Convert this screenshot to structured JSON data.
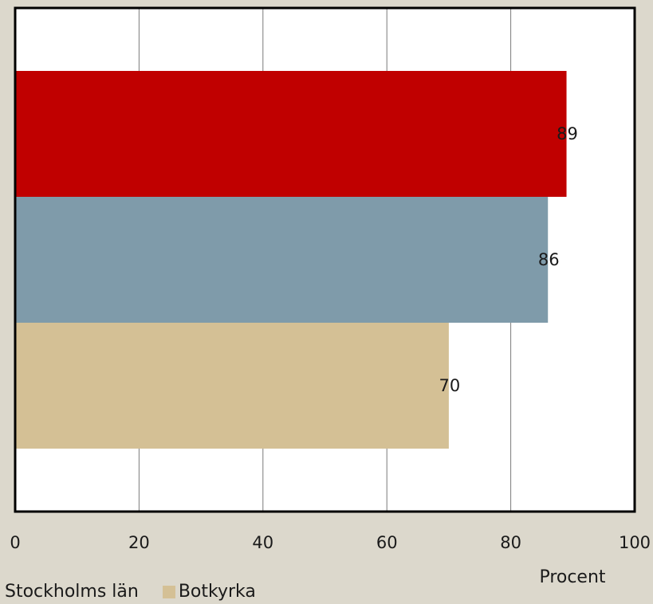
{
  "chart_data": {
    "type": "bar",
    "orientation": "horizontal",
    "xlabel": "Procent",
    "xlim": [
      0,
      100
    ],
    "xticks": [
      "0",
      "20",
      "40",
      "60",
      "80",
      "100"
    ],
    "grid": true,
    "legend_placement": "bottom-left",
    "series": [
      {
        "name": "",
        "value": 89,
        "label": "89",
        "color": "#c00000"
      },
      {
        "name": "Stockholms län",
        "value": 86,
        "label": "86",
        "color": "#7f9baa"
      },
      {
        "name": "Botkyrka",
        "value": 70,
        "label": "70",
        "color": "#d4c095"
      }
    ]
  },
  "legend": {
    "items": [
      {
        "label": "Stockholms län",
        "color": "#7f9baa",
        "show_swatch": false
      },
      {
        "label": "Botkyrka",
        "color": "#d4c095",
        "show_swatch": true
      }
    ]
  }
}
